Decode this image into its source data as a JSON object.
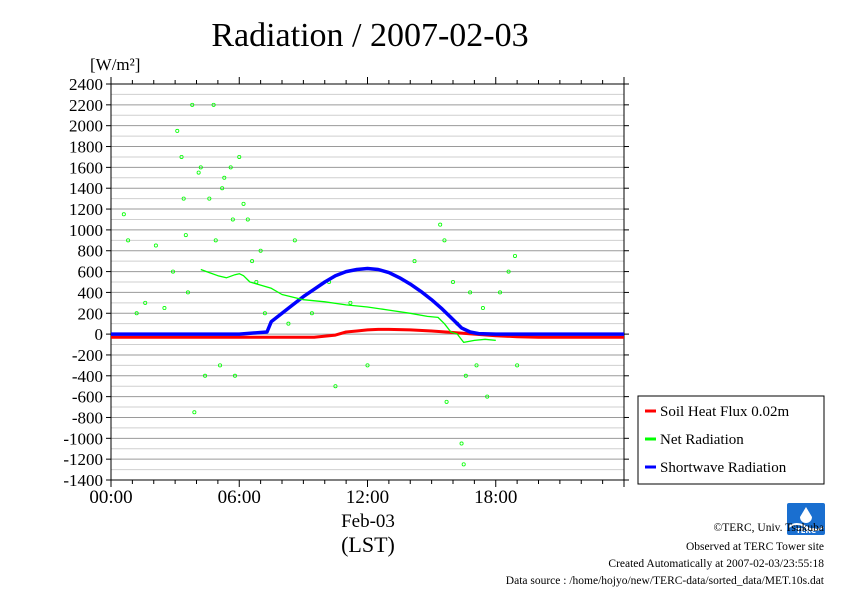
{
  "chart_data": {
    "type": "line",
    "title": "Radiation / 2007-02-03",
    "ylabel": "[W/m²]",
    "ylim": [
      -1400,
      2400
    ],
    "yticks": [
      2400,
      2200,
      2000,
      1800,
      1600,
      1400,
      1200,
      1000,
      800,
      600,
      400,
      200,
      0,
      -200,
      -400,
      -600,
      -800,
      -1000,
      -1200,
      -1400
    ],
    "xlim": [
      0,
      24
    ],
    "xtick_labels": [
      {
        "t": 0,
        "label": "00:00"
      },
      {
        "t": 6,
        "label": "06:00"
      },
      {
        "t": 12,
        "label": "12:00"
      },
      {
        "t": 18,
        "label": "18:00"
      }
    ],
    "date_label": "Feb-03",
    "xlabel": "(LST)",
    "grid": true,
    "legend_position": "right",
    "series": [
      {
        "name": "Soil Heat Flux 0.02m",
        "color": "#ff0000",
        "x": [
          0,
          2,
          4,
          6,
          8,
          9.5,
          10.5,
          11,
          11.5,
          12,
          12.5,
          13,
          14,
          15,
          16,
          17,
          18,
          19,
          20,
          22,
          24
        ],
        "y": [
          -30,
          -30,
          -30,
          -30,
          -30,
          -30,
          -10,
          20,
          30,
          40,
          45,
          45,
          40,
          30,
          15,
          0,
          -15,
          -25,
          -30,
          -30,
          -30
        ]
      },
      {
        "name": "Net Radiation",
        "color": "#00ff00",
        "x": [
          4.2,
          4.6,
          5,
          5.4,
          5.8,
          6,
          6.2,
          6.5,
          7,
          7.5,
          8,
          9,
          10,
          11,
          12,
          13,
          14,
          14.8,
          15.3,
          15.6,
          15.9,
          16.2,
          16.5,
          17,
          17.5,
          18
        ],
        "y": [
          620,
          590,
          560,
          540,
          570,
          580,
          560,
          500,
          470,
          440,
          380,
          330,
          310,
          280,
          260,
          230,
          200,
          170,
          160,
          100,
          20,
          0,
          -80,
          -60,
          -50,
          -60
        ],
        "scatter": [
          [
            0.6,
            1150
          ],
          [
            0.8,
            900
          ],
          [
            1.2,
            200
          ],
          [
            1.6,
            300
          ],
          [
            2.1,
            850
          ],
          [
            2.5,
            250
          ],
          [
            2.9,
            600
          ],
          [
            3.1,
            1950
          ],
          [
            3.3,
            1700
          ],
          [
            3.4,
            1300
          ],
          [
            3.5,
            950
          ],
          [
            3.6,
            400
          ],
          [
            3.8,
            2200
          ],
          [
            3.9,
            -750
          ],
          [
            4.1,
            1550
          ],
          [
            4.2,
            1600
          ],
          [
            4.4,
            -400
          ],
          [
            4.6,
            1300
          ],
          [
            4.8,
            2200
          ],
          [
            4.9,
            900
          ],
          [
            5.1,
            -300
          ],
          [
            5.2,
            1400
          ],
          [
            5.3,
            1500
          ],
          [
            5.6,
            1600
          ],
          [
            5.7,
            1100
          ],
          [
            5.8,
            -400
          ],
          [
            6.0,
            1700
          ],
          [
            6.2,
            1250
          ],
          [
            6.4,
            1100
          ],
          [
            6.6,
            700
          ],
          [
            6.8,
            500
          ],
          [
            7.0,
            800
          ],
          [
            7.2,
            200
          ],
          [
            8.3,
            100
          ],
          [
            8.6,
            900
          ],
          [
            9.4,
            200
          ],
          [
            10.2,
            500
          ],
          [
            10.5,
            -500
          ],
          [
            11.2,
            300
          ],
          [
            12.0,
            -300
          ],
          [
            14.2,
            700
          ],
          [
            15.4,
            1050
          ],
          [
            15.6,
            900
          ],
          [
            15.7,
            -650
          ],
          [
            16.0,
            500
          ],
          [
            16.2,
            100
          ],
          [
            16.4,
            -1050
          ],
          [
            16.5,
            -1250
          ],
          [
            16.6,
            -400
          ],
          [
            16.8,
            400
          ],
          [
            17.1,
            -300
          ],
          [
            17.4,
            250
          ],
          [
            17.6,
            -600
          ],
          [
            18.2,
            400
          ],
          [
            18.6,
            600
          ],
          [
            18.9,
            750
          ],
          [
            19.0,
            -300
          ]
        ]
      },
      {
        "name": "Shortwave Radiation",
        "color": "#0000ff",
        "x": [
          0,
          3,
          6,
          7.3,
          7.5,
          8,
          8.5,
          9,
          9.5,
          10,
          10.5,
          11,
          11.5,
          12,
          12.5,
          13,
          13.5,
          14,
          14.5,
          15,
          15.5,
          16,
          16.4,
          16.8,
          17.2,
          18,
          20,
          24
        ],
        "y": [
          0,
          0,
          0,
          20,
          120,
          200,
          280,
          360,
          430,
          500,
          560,
          600,
          620,
          630,
          620,
          590,
          540,
          480,
          410,
          330,
          240,
          140,
          60,
          20,
          5,
          0,
          0,
          0
        ]
      }
    ]
  },
  "credits": {
    "copyright": "©TERC, Univ. Tsukuba",
    "observed": "Observed at TERC Tower site",
    "created": "Created Automatically at 2007-02-03/23:55:18",
    "source": "Data source : /home/hojyo/new/TERC-data/sorted_data/MET.10s.dat",
    "logo_text": "TERC"
  }
}
